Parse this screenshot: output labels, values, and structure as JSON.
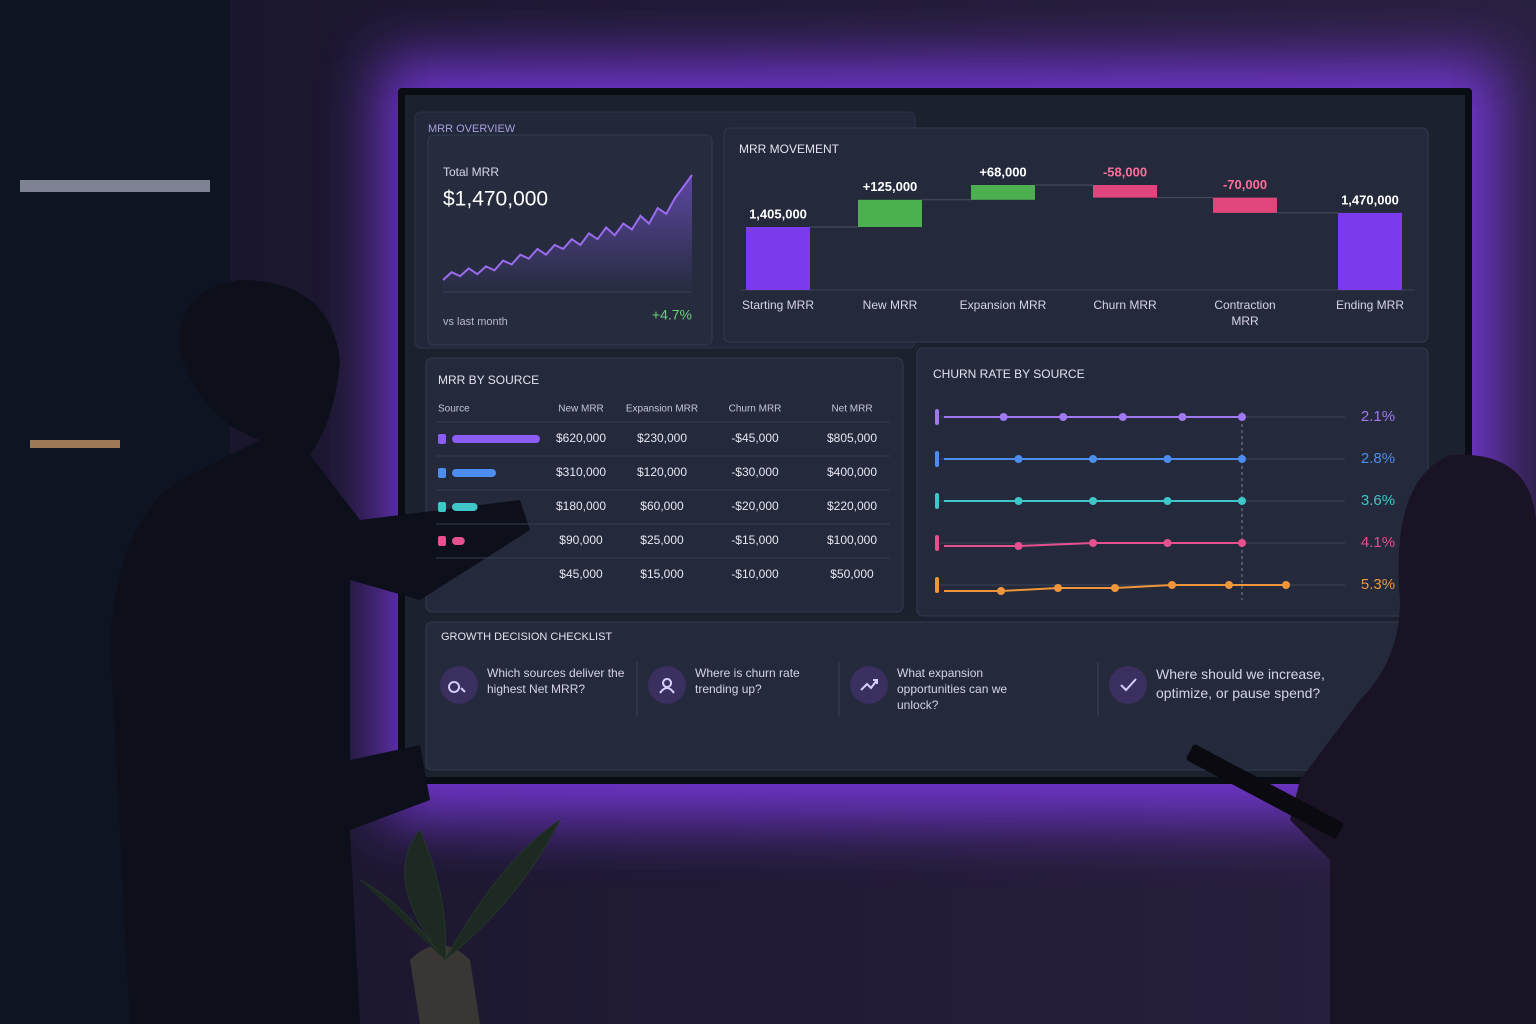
{
  "screen": {
    "overview": {
      "title": "MRR OVERVIEW",
      "kpi_label": "Total MRR",
      "kpi_value": "$1,470,000",
      "trend": [
        1.0,
        1.4,
        1.2,
        1.6,
        1.3,
        1.7,
        1.5,
        2.0,
        1.8,
        2.3,
        2.1,
        2.6,
        2.3,
        2.8,
        2.6,
        3.1,
        2.8,
        3.4,
        3.1,
        3.7,
        3.3,
        3.9,
        3.6,
        4.3,
        3.9,
        4.7,
        4.4,
        5.2,
        5.8,
        6.4
      ],
      "comparison_label": "vs last month",
      "change": "+4.7%"
    },
    "movement": {
      "type": "waterfall",
      "title": "MRR MOVEMENT",
      "categories": [
        "Starting MRR",
        "New MRR",
        "Expansion MRR",
        "Churn MRR",
        "Contraction MRR",
        "Ending MRR"
      ],
      "values": [
        1405000,
        125000,
        68000,
        -58000,
        -70000,
        1470000
      ],
      "value_labels": [
        "1,405,000",
        "+125,000",
        "+68,000",
        "-58,000",
        "-70,000",
        "1,470,000"
      ],
      "colors": [
        "#7c3aed",
        "#4caf50",
        "#4caf50",
        "#e0457b",
        "#e0457b",
        "#7c3aed"
      ]
    },
    "by_source": {
      "title": "MRR BY SOURCE",
      "columns": [
        "Source",
        "New MRR",
        "Expansion MRR",
        "Churn MRR",
        "Net MRR"
      ],
      "rows": [
        {
          "color": "#8b5cf6",
          "cells": [
            "$620,000",
            "$230,000",
            "-$45,000",
            "$805,000"
          ]
        },
        {
          "color": "#4c8df0",
          "cells": [
            "$310,000",
            "$120,000",
            "-$30,000",
            "$400,000"
          ]
        },
        {
          "color": "#3fc6c8",
          "cells": [
            "$180,000",
            "$60,000",
            "-$20,000",
            "$220,000"
          ]
        },
        {
          "color": "#e5508f",
          "cells": [
            "$90,000",
            "$25,000",
            "-$15,000",
            "$100,000"
          ]
        },
        {
          "color": null,
          "cells": [
            "$45,000",
            "$15,000",
            "-$10,000",
            "$50,000"
          ]
        }
      ]
    },
    "churn": {
      "title": "CHURN RATE BY SOURCE",
      "series": [
        {
          "color": "#a078f2",
          "values": [
            2.1,
            2.1,
            2.1,
            2.1,
            2.1,
            2.1
          ],
          "rate": 2.1,
          "rate_label": "2.1%"
        },
        {
          "color": "#4c8df0",
          "values": [
            2.8,
            2.8,
            2.8,
            2.8,
            2.8
          ],
          "rate": 2.8,
          "rate_label": "2.8%"
        },
        {
          "color": "#3fc6c8",
          "values": [
            3.6,
            3.6,
            3.6,
            3.6,
            3.6
          ],
          "rate": 3.6,
          "rate_label": "3.6%"
        },
        {
          "color": "#e5508f",
          "values": [
            4.0,
            4.0,
            4.1,
            4.1,
            4.1
          ],
          "rate": 4.1,
          "rate_label": "4.1%"
        },
        {
          "color": "#f0963a",
          "values": [
            5.1,
            5.1,
            5.2,
            5.2,
            5.3,
            5.3,
            5.3
          ],
          "rate": 5.3,
          "rate_label": "5.3%"
        }
      ]
    },
    "checklist": {
      "title": "GROWTH DECISION CHECKLIST",
      "items": [
        "Which sources deliver the highest Net MRR?",
        "Where is churn rate trending up?",
        "What expansion opportunities can we unlock?",
        "Where should we increase, optimize, or pause spend?"
      ]
    }
  }
}
